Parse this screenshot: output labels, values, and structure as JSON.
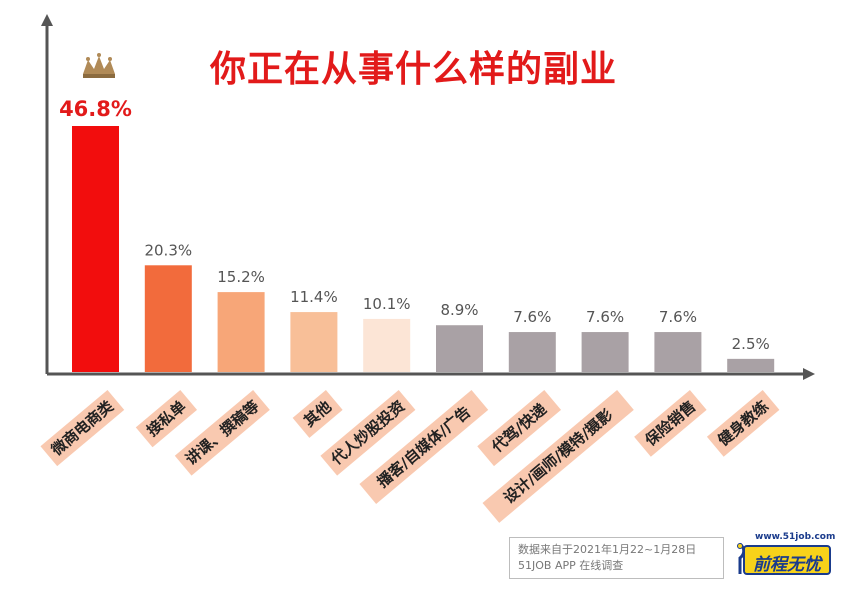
{
  "chart_data": {
    "type": "bar",
    "title": "你正在从事什么样的副业",
    "categories": [
      "微商电商类",
      "接私单",
      "讲课、撰稿等",
      "其他",
      "代人炒股投资",
      "播客/自媒体/广告",
      "代驾/快递",
      "设计/画师/模特/摄影",
      "保险销售",
      "健身教练"
    ],
    "values": [
      46.8,
      20.3,
      15.2,
      11.4,
      10.1,
      8.9,
      7.6,
      7.6,
      7.6,
      2.5
    ],
    "value_labels": [
      "46.8%",
      "20.3%",
      "15.2%",
      "11.4%",
      "10.1%",
      "8.9%",
      "7.6%",
      "7.6%",
      "7.6%",
      "2.5%"
    ],
    "ylim": [
      0,
      50
    ],
    "grid": false,
    "colors": [
      "#f20d0d",
      "#f26b3c",
      "#f7a678",
      "#f8bf98",
      "#fce5d6",
      "#a9a1a5",
      "#a9a1a5",
      "#a9a1a5",
      "#a9a1a5",
      "#a9a1a5"
    ],
    "label_bg": "#f9c9b0",
    "top_label_color": "#e21a1a",
    "other_label_color": "#555555",
    "axis_color": "#555555"
  },
  "crown_icon": "crown-icon",
  "source": {
    "line1": "数据来自于2021年1月22~1月28日",
    "line2": "51JOB APP 在线调查"
  },
  "logo": {
    "url": "www.51job.com",
    "text": "前程无忧",
    "color": "#1a3b8c",
    "badge_color": "#f7d21a"
  }
}
